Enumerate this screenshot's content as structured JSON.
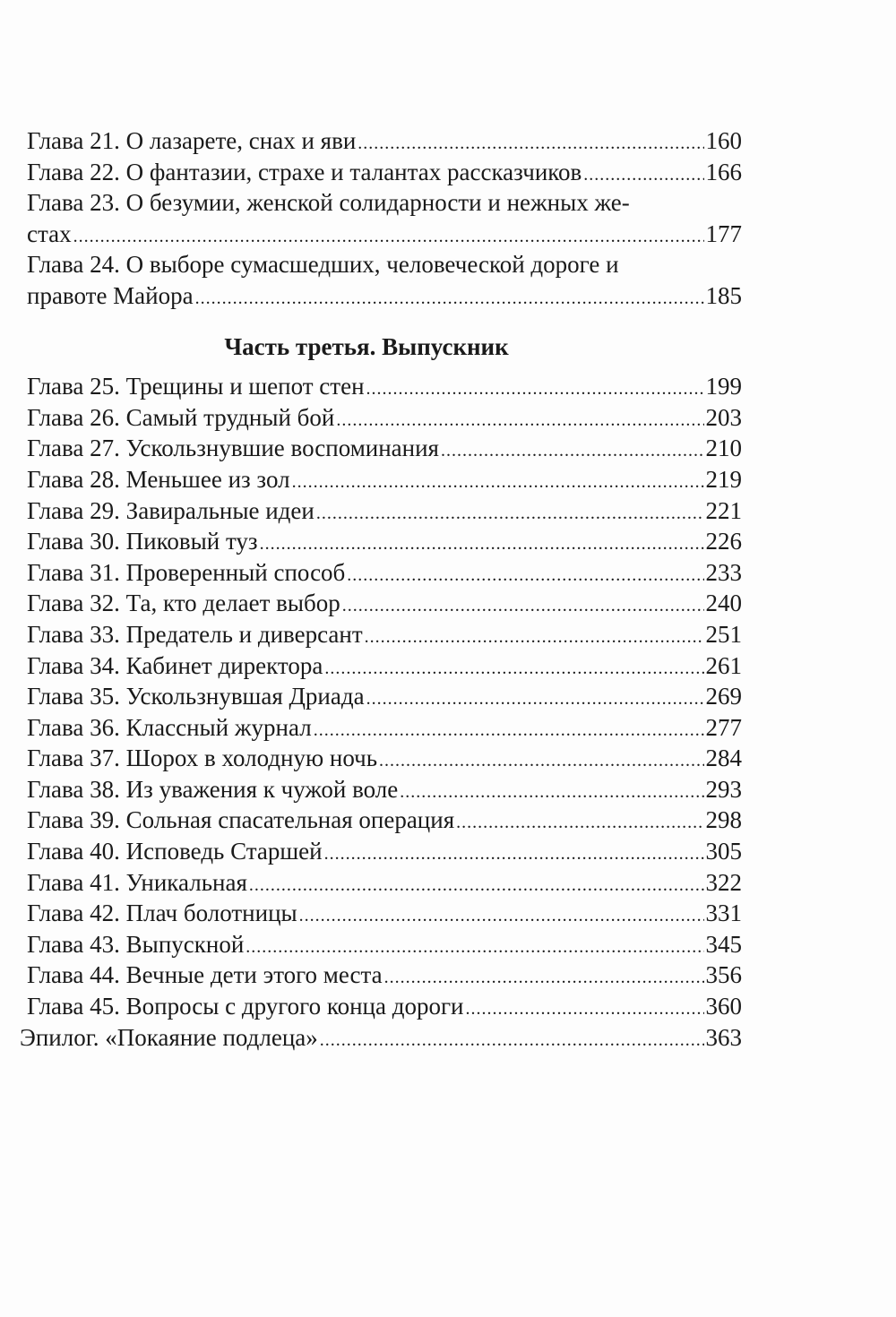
{
  "entries_a": [
    {
      "lines": [
        "Глава 21. О лазарете, снах и яви"
      ],
      "page": "160"
    },
    {
      "lines": [
        "Глава 22. О фантазии, страхе и талантах рассказчиков"
      ],
      "page": "166"
    },
    {
      "lines": [
        "Глава 23. О безумии, женской солидарности и нежных же-",
        "стах"
      ],
      "page": "177"
    },
    {
      "lines": [
        "Глава 24. О выборе сумасшедших, человеческой дороге и",
        "правоте Майора"
      ],
      "page": "185"
    }
  ],
  "part_heading": "Часть третья. Выпускник",
  "entries_b": [
    {
      "title": "Глава 25. Трещины и шепот стен",
      "page": "199"
    },
    {
      "title": "Глава 26. Самый трудный бой",
      "page": "203"
    },
    {
      "title": "Глава 27. Ускользнувшие воспоминания",
      "page": "210"
    },
    {
      "title": "Глава 28. Меньшее из зол",
      "page": "219"
    },
    {
      "title": "Глава 29. Завиральные идеи",
      "page": "221"
    },
    {
      "title": "Глава 30. Пиковый туз",
      "page": "226"
    },
    {
      "title": "Глава 31. Проверенный способ",
      "page": "233"
    },
    {
      "title": "Глава 32. Та, кто делает выбор",
      "page": "240"
    },
    {
      "title": "Глава 33. Предатель и диверсант",
      "page": "251"
    },
    {
      "title": "Глава 34. Кабинет директора",
      "page": "261"
    },
    {
      "title": "Глава 35. Ускользнувшая Дриада",
      "page": "269"
    },
    {
      "title": "Глава 36. Классный журнал",
      "page": "277"
    },
    {
      "title": "Глава 37. Шорох в холодную ночь",
      "page": "284"
    },
    {
      "title": "Глава 38. Из уважения к чужой воле",
      "page": "293"
    },
    {
      "title": "Глава 39. Сольная спасательная операция",
      "page": "298"
    },
    {
      "title": "Глава 40. Исповедь Старшей",
      "page": "305"
    },
    {
      "title": "Глава 41. Уникальная",
      "page": "322"
    },
    {
      "title": "Глава 42. Плач болотницы",
      "page": "331"
    },
    {
      "title": "Глава 43. Выпускной",
      "page": "345"
    },
    {
      "title": "Глава 44. Вечные дети этого места",
      "page": "356"
    },
    {
      "title": "Глава 45. Вопросы с другого конца дороги",
      "page": "360"
    }
  ],
  "epilogue": {
    "title": "Эпилог. «Покаяние подлеца»",
    "page": "363"
  }
}
